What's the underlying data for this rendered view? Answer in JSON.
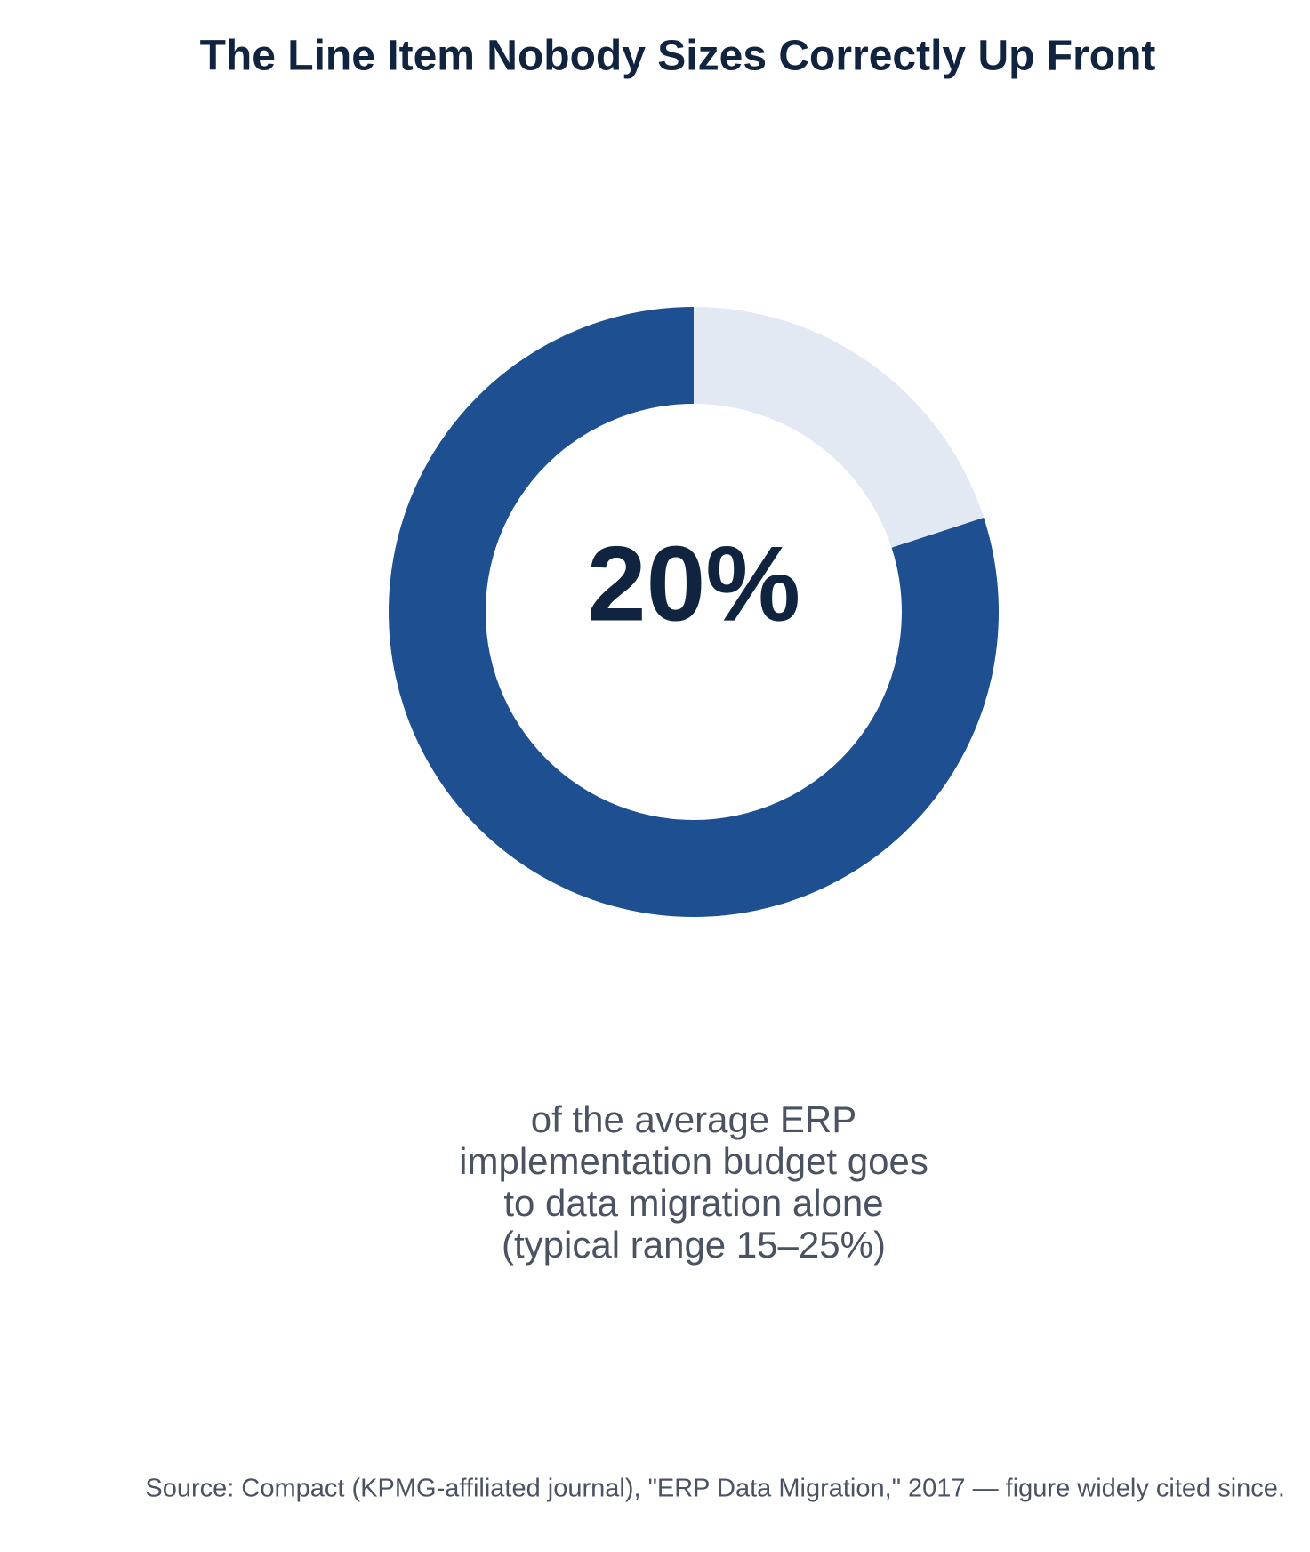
{
  "chart_data": {
    "type": "donut",
    "title": "The Line Item Nobody Sizes Correctly Up Front",
    "values": [
      20,
      80
    ],
    "value_labels": [
      "20%",
      null
    ],
    "colors": [
      "#e3e9f2",
      "#1e5091"
    ],
    "description": [
      "of the average ERP",
      "implementation budget goes",
      "to data migration alone",
      "(typical range 15–25%)"
    ],
    "source": "Source: Compact (KPMG-affiliated journal), \"ERP Data Migration,\" 2017 — figure widely cited since."
  }
}
